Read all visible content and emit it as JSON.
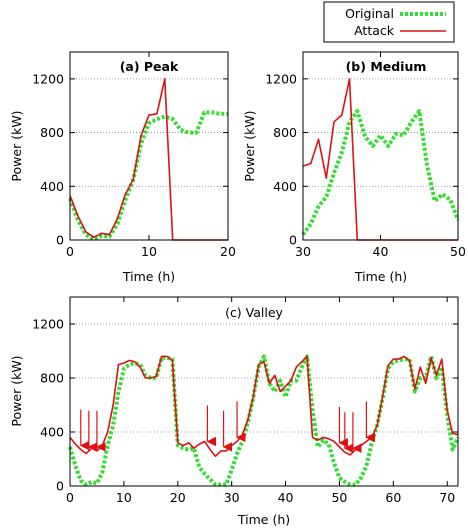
{
  "legend": {
    "placement": "top-right",
    "items": [
      {
        "label": "Original",
        "color": "#33dd33",
        "style": "dotted"
      },
      {
        "label": "Attack",
        "color": "#dd1111",
        "style": "solid"
      }
    ]
  },
  "chart_data": [
    {
      "id": "peak",
      "type": "line",
      "title": "(a) Peak",
      "xlabel": "Time (h)",
      "ylabel": "Power (kW)",
      "xlim": [
        0,
        20
      ],
      "ylim": [
        0,
        1400
      ],
      "xticks": [
        0,
        10,
        20
      ],
      "yticks": [
        0,
        400,
        800,
        1200
      ],
      "grid": "horizontal-dotted",
      "series": [
        {
          "name": "Original",
          "color": "#33dd33",
          "x": [
            0,
            1,
            2,
            3,
            4,
            5,
            6,
            7,
            8,
            9,
            10,
            11,
            12,
            13,
            14,
            15,
            16,
            17,
            18,
            19,
            20
          ],
          "y": [
            310,
            150,
            40,
            5,
            30,
            25,
            120,
            300,
            450,
            720,
            870,
            900,
            920,
            900,
            820,
            800,
            800,
            950,
            950,
            940,
            940
          ]
        },
        {
          "name": "Attack",
          "color": "#dd1111",
          "x": [
            0,
            1,
            2,
            3,
            4,
            5,
            6,
            7,
            8,
            9,
            10,
            11,
            12,
            13,
            14,
            15,
            16,
            17,
            18,
            19,
            20
          ],
          "y": [
            330,
            180,
            60,
            20,
            50,
            40,
            160,
            340,
            450,
            780,
            930,
            940,
            1200,
            0,
            0,
            0,
            0,
            0,
            0,
            0,
            0
          ]
        }
      ]
    },
    {
      "id": "medium",
      "type": "line",
      "title": "(b) Medium",
      "xlabel": "Time (h)",
      "ylabel": "Power (kW)",
      "xlim": [
        30,
        50
      ],
      "ylim": [
        0,
        1400
      ],
      "xticks": [
        30,
        40,
        50
      ],
      "yticks": [
        0,
        400,
        800,
        1200
      ],
      "grid": "horizontal-dotted",
      "series": [
        {
          "name": "Original",
          "color": "#33dd33",
          "x": [
            30,
            31,
            32,
            33,
            34,
            35,
            36,
            37,
            38,
            39,
            40,
            41,
            42,
            43,
            44,
            45,
            46,
            47,
            48,
            49,
            50
          ],
          "y": [
            40,
            120,
            250,
            320,
            500,
            650,
            880,
            960,
            770,
            700,
            780,
            700,
            790,
            780,
            880,
            960,
            560,
            290,
            340,
            300,
            150
          ]
        },
        {
          "name": "Attack",
          "color": "#dd1111",
          "x": [
            30,
            31,
            32,
            33,
            34,
            35,
            36,
            37,
            38,
            39,
            40,
            41,
            42,
            43,
            44,
            45,
            46,
            47,
            48,
            49,
            50
          ],
          "y": [
            550,
            570,
            750,
            460,
            880,
            930,
            1200,
            0,
            0,
            0,
            0,
            0,
            0,
            0,
            0,
            0,
            0,
            0,
            0,
            0,
            0
          ]
        }
      ]
    },
    {
      "id": "valley",
      "type": "line",
      "title": "(c) Valley",
      "xlabel": "Time (h)",
      "ylabel": "Power (kW)",
      "xlim": [
        0,
        72
      ],
      "ylim": [
        0,
        1400
      ],
      "xticks": [
        0,
        10,
        20,
        30,
        40,
        50,
        60,
        70
      ],
      "yticks": [
        0,
        400,
        800,
        1200
      ],
      "grid": "horizontal-dotted",
      "series": [
        {
          "name": "Original",
          "color": "#33dd33",
          "x": [
            0,
            1,
            2,
            3,
            4,
            5,
            6,
            7,
            8,
            9,
            10,
            11,
            12,
            13,
            14,
            15,
            16,
            17,
            18,
            19,
            20,
            21,
            22,
            23,
            24,
            25,
            26,
            27,
            28,
            29,
            30,
            31,
            32,
            33,
            34,
            35,
            36,
            37,
            38,
            39,
            40,
            41,
            42,
            43,
            44,
            45,
            46,
            47,
            48,
            49,
            50,
            51,
            52,
            53,
            54,
            55,
            56,
            57,
            58,
            59,
            60,
            61,
            62,
            63,
            64,
            65,
            66,
            67,
            68,
            69,
            70,
            71,
            72
          ],
          "y": [
            290,
            150,
            40,
            10,
            30,
            20,
            100,
            300,
            450,
            700,
            870,
            900,
            910,
            900,
            820,
            800,
            800,
            950,
            950,
            940,
            300,
            280,
            270,
            280,
            140,
            90,
            50,
            10,
            10,
            10,
            120,
            240,
            330,
            470,
            650,
            880,
            960,
            760,
            700,
            780,
            660,
            780,
            780,
            880,
            960,
            560,
            290,
            340,
            310,
            170,
            60,
            30,
            10,
            10,
            60,
            150,
            320,
            450,
            650,
            870,
            920,
            930,
            940,
            940,
            700,
            800,
            800,
            960,
            800,
            880,
            530,
            270,
            360
          ]
        },
        {
          "name": "Attack",
          "color": "#dd1111",
          "x": [
            0,
            1,
            2,
            3,
            4,
            5,
            6,
            7,
            8,
            9,
            10,
            11,
            12,
            13,
            14,
            15,
            16,
            17,
            18,
            19,
            20,
            21,
            22,
            23,
            24,
            25,
            26,
            27,
            28,
            29,
            30,
            31,
            32,
            33,
            34,
            35,
            36,
            37,
            38,
            39,
            40,
            41,
            42,
            43,
            44,
            45,
            46,
            47,
            48,
            49,
            50,
            51,
            52,
            53,
            54,
            55,
            56,
            57,
            58,
            59,
            60,
            61,
            62,
            63,
            64,
            65,
            66,
            67,
            68,
            69,
            70,
            71,
            72
          ],
          "y": [
            360,
            310,
            270,
            240,
            280,
            260,
            300,
            400,
            600,
            900,
            910,
            930,
            920,
            880,
            800,
            800,
            810,
            960,
            960,
            930,
            320,
            300,
            320,
            280,
            310,
            330,
            270,
            220,
            260,
            260,
            300,
            330,
            380,
            490,
            660,
            900,
            920,
            760,
            820,
            700,
            740,
            780,
            880,
            920,
            960,
            360,
            340,
            360,
            350,
            330,
            290,
            250,
            230,
            270,
            300,
            330,
            360,
            450,
            660,
            890,
            940,
            940,
            960,
            930,
            720,
            880,
            760,
            950,
            820,
            940,
            560,
            390,
            380
          ]
        }
      ],
      "attack_markers_x": [
        2,
        3.5,
        5,
        25.5,
        28.5,
        31,
        50,
        51,
        52.5,
        55
      ]
    }
  ]
}
